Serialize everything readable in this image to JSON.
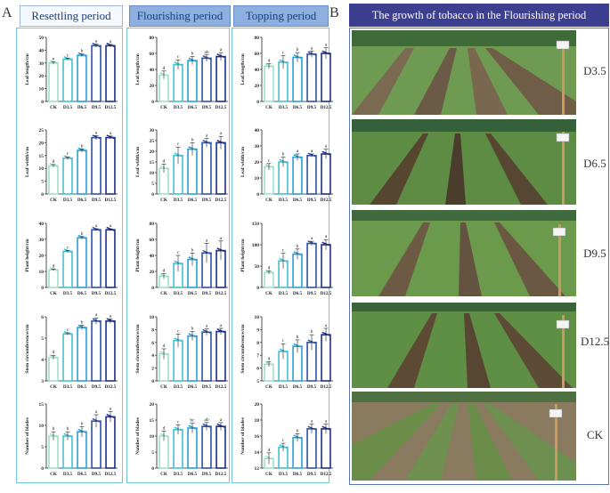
{
  "panel_labels": {
    "a": "A",
    "b": "B"
  },
  "columns": [
    {
      "title": "Resettling period",
      "header_style": "light"
    },
    {
      "title": "Flourishing period",
      "header_style": "dark"
    },
    {
      "title": "Topping period",
      "header_style": "dark"
    }
  ],
  "photo_panel": {
    "title": "The growth of tobacco in the Flourishing period",
    "rows": [
      {
        "label": "D3.5"
      },
      {
        "label": "D6.5"
      },
      {
        "label": "D9.5"
      },
      {
        "label": "D12.5"
      },
      {
        "label": "CK"
      }
    ]
  },
  "colors": {
    "bars": [
      "#9fe0cc",
      "#46c1d2",
      "#2a9fd6",
      "#2f52a8",
      "#1f2f8a"
    ],
    "frame": "#6fcad8",
    "photo_header_bg": "#3c3f8f"
  },
  "chart_data": [
    {
      "type": "bar",
      "title": "Resettling period",
      "ylabel": "Leaf length/cm",
      "ylim": [
        0,
        50
      ],
      "yticks": [
        0,
        10,
        20,
        30,
        40,
        50
      ],
      "categories": [
        "CK",
        "D3.5",
        "D6.5",
        "D9.5",
        "D12.5"
      ],
      "values": [
        30,
        33,
        36,
        43.5,
        43.5
      ],
      "errors": [
        1,
        0.8,
        1,
        1.2,
        1
      ],
      "letters": [
        "e",
        "c",
        "b",
        "a",
        "a"
      ]
    },
    {
      "type": "bar",
      "title": "Flourishing period",
      "ylabel": "Leaf length/cm",
      "ylim": [
        0,
        80
      ],
      "yticks": [
        0,
        20,
        40,
        60,
        80
      ],
      "categories": [
        "CK",
        "D3.5",
        "D6.5",
        "D9.5",
        "D12.5"
      ],
      "values": [
        33,
        46,
        51,
        54,
        56
      ],
      "errors": [
        5,
        6,
        5,
        4,
        5
      ],
      "letters": [
        "d",
        "c",
        "b",
        "ab",
        "a"
      ]
    },
    {
      "type": "bar",
      "title": "Topping period",
      "ylabel": "Leaf length/cm",
      "ylim": [
        0,
        80
      ],
      "yticks": [
        0,
        20,
        40,
        60,
        80
      ],
      "categories": [
        "CK",
        "D3.5",
        "D6.5",
        "D9.5",
        "D12.5"
      ],
      "values": [
        44,
        49,
        55,
        59,
        60
      ],
      "errors": [
        3,
        8,
        6,
        4,
        7
      ],
      "letters": [
        "d",
        "c",
        "b",
        "a",
        "a"
      ]
    },
    {
      "type": "bar",
      "ylabel": "Leaf width/cm",
      "ylim": [
        0,
        25
      ],
      "yticks": [
        0,
        5,
        10,
        15,
        20,
        25
      ],
      "categories": [
        "CK",
        "D3.5",
        "D6.5",
        "D9.5",
        "D12.5"
      ],
      "values": [
        11,
        14,
        17,
        22,
        22
      ],
      "errors": [
        0.5,
        0.5,
        0.6,
        0.8,
        0.6
      ],
      "letters": [
        "d",
        "c",
        "b",
        "a",
        "a"
      ]
    },
    {
      "type": "bar",
      "ylabel": "Leaf width/cm",
      "ylim": [
        0,
        30
      ],
      "yticks": [
        0,
        5,
        10,
        15,
        20,
        25,
        30
      ],
      "categories": [
        "CK",
        "D3.5",
        "D6.5",
        "D9.5",
        "D12.5"
      ],
      "values": [
        12,
        18,
        21,
        24,
        24
      ],
      "errors": [
        2,
        4,
        3,
        2,
        3
      ],
      "letters": [
        "d",
        "c",
        "b",
        "a",
        "a"
      ]
    },
    {
      "type": "bar",
      "ylabel": "Leaf width/cm",
      "ylim": [
        0,
        40
      ],
      "yticks": [
        0,
        10,
        20,
        30,
        40
      ],
      "categories": [
        "CK",
        "D3.5",
        "D6.5",
        "D9.5",
        "D12.5"
      ],
      "values": [
        17,
        20,
        23,
        24,
        25
      ],
      "errors": [
        2,
        3,
        2,
        1,
        3
      ],
      "letters": [
        "c",
        "b",
        "a",
        "a",
        "a"
      ]
    },
    {
      "type": "bar",
      "ylabel": "Plant height/cm",
      "ylim": [
        0,
        40
      ],
      "yticks": [
        0,
        10,
        20,
        30,
        40
      ],
      "categories": [
        "CK",
        "D3.5",
        "D6.5",
        "D9.5",
        "D12.5"
      ],
      "values": [
        11,
        22.5,
        31,
        36,
        36
      ],
      "errors": [
        0.5,
        0.6,
        0.8,
        0.7,
        0.6
      ],
      "letters": [
        "d",
        "c",
        "b",
        "a",
        "a"
      ]
    },
    {
      "type": "bar",
      "ylabel": "Plant height/cm",
      "ylim": [
        0,
        80
      ],
      "yticks": [
        0,
        20,
        40,
        60,
        80
      ],
      "categories": [
        "CK",
        "D3.5",
        "D6.5",
        "D9.5",
        "D12.5"
      ],
      "values": [
        14,
        30,
        35,
        43,
        46
      ],
      "errors": [
        3,
        10,
        8,
        12,
        12
      ],
      "letters": [
        "d",
        "c",
        "b",
        "a",
        "a"
      ]
    },
    {
      "type": "bar",
      "ylabel": "Plant height/cm",
      "ylim": [
        0,
        150
      ],
      "yticks": [
        0,
        50,
        100,
        150
      ],
      "categories": [
        "CK",
        "D3.5",
        "D6.5",
        "D9.5",
        "D12.5"
      ],
      "values": [
        35,
        62,
        78,
        103,
        100
      ],
      "errors": [
        4,
        18,
        12,
        5,
        12
      ],
      "letters": [
        "d",
        "c",
        "b",
        "a",
        "a"
      ]
    },
    {
      "type": "bar",
      "ylabel": "Stem circumference/cm",
      "ylim": [
        3,
        6
      ],
      "yticks": [
        3,
        4,
        5,
        6
      ],
      "categories": [
        "CK",
        "D3.5",
        "D6.5",
        "D9.5",
        "D12.5"
      ],
      "values": [
        4.1,
        5.2,
        5.5,
        5.8,
        5.8
      ],
      "errors": [
        0.1,
        0.05,
        0.1,
        0.15,
        0.1
      ],
      "letters": [
        "d",
        "c",
        "b",
        "a",
        "a"
      ]
    },
    {
      "type": "bar",
      "ylabel": "Stem circumference/cm",
      "ylim": [
        0,
        10
      ],
      "yticks": [
        0,
        2,
        4,
        6,
        8,
        10
      ],
      "categories": [
        "CK",
        "D3.5",
        "D6.5",
        "D9.5",
        "D12.5"
      ],
      "values": [
        4.2,
        6.3,
        7.0,
        7.6,
        7.7
      ],
      "errors": [
        0.8,
        1,
        0.7,
        0.5,
        0.5
      ],
      "letters": [
        "d",
        "c",
        "b",
        "a",
        "a"
      ]
    },
    {
      "type": "bar",
      "ylabel": "Stem circumference/cm",
      "ylim": [
        5,
        10
      ],
      "yticks": [
        5,
        6,
        7,
        8,
        9,
        10
      ],
      "categories": [
        "CK",
        "D3.5",
        "D6.5",
        "D9.5",
        "D12.5"
      ],
      "values": [
        6.3,
        7.3,
        7.7,
        8.0,
        8.6
      ],
      "errors": [
        0.2,
        0.6,
        0.5,
        0.6,
        0.5
      ],
      "letters": [
        "d",
        "c",
        "b",
        "b",
        "a"
      ]
    },
    {
      "type": "bar",
      "ylabel": "Number of blades",
      "ylim": [
        0,
        15
      ],
      "yticks": [
        0,
        5,
        10,
        15
      ],
      "categories": [
        "CK",
        "D3.5",
        "D6.5",
        "D9.5",
        "D12.5"
      ],
      "values": [
        7.5,
        7.5,
        8.5,
        11,
        12
      ],
      "errors": [
        1,
        1,
        1.2,
        1.5,
        1.2
      ],
      "letters": [
        "b",
        "b",
        "b",
        "a",
        "a"
      ]
    },
    {
      "type": "bar",
      "ylabel": "Number of blades",
      "ylim": [
        0,
        20
      ],
      "yticks": [
        0,
        5,
        10,
        15,
        20
      ],
      "categories": [
        "CK",
        "D3.5",
        "D6.5",
        "D9.5",
        "D12.5"
      ],
      "values": [
        10,
        12,
        12.5,
        13,
        13
      ],
      "errors": [
        1.5,
        1.5,
        1.5,
        1.2,
        1.2
      ],
      "letters": [
        "d",
        "c",
        "bc",
        "ab",
        "a"
      ]
    },
    {
      "type": "bar",
      "ylabel": "Number of blades",
      "ylim": [
        12,
        20
      ],
      "yticks": [
        12,
        14,
        16,
        18,
        20
      ],
      "categories": [
        "CK",
        "D3.5",
        "D6.5",
        "D9.5",
        "D12.5"
      ],
      "values": [
        13.2,
        14.6,
        15.8,
        16.9,
        16.9
      ],
      "errors": [
        0.7,
        0.5,
        0.5,
        0.6,
        0.6
      ],
      "letters": [
        "d",
        "c",
        "b",
        "a",
        "a"
      ]
    }
  ]
}
